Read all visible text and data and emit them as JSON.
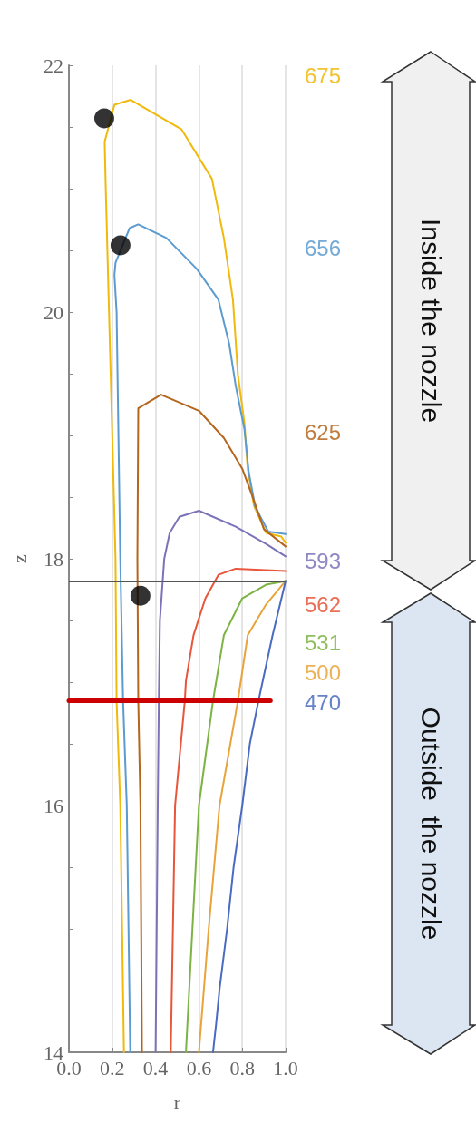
{
  "chart_data": {
    "type": "line",
    "xlabel": "r",
    "ylabel": "z",
    "xlim": [
      0,
      1
    ],
    "ylim": [
      14,
      22
    ],
    "xticks": [
      {
        "value": 0,
        "label": "0.0"
      },
      0.2,
      0.4,
      0.6,
      0.8,
      {
        "value": 1,
        "label": "1.0"
      }
    ],
    "yticks": [
      14,
      {
        "value": 14.5,
        "label": null
      },
      {
        "value": 15,
        "label": null
      },
      {
        "value": 15.5,
        "label": null
      },
      16,
      {
        "value": 16.5,
        "label": null
      },
      {
        "value": 17,
        "label": null
      },
      {
        "value": 17.5,
        "label": null
      },
      18,
      {
        "value": 18.5,
        "label": null
      },
      {
        "value": 19,
        "label": null
      },
      {
        "value": 19.5,
        "label": null
      },
      20,
      {
        "value": 20.5,
        "label": null
      },
      {
        "value": 21,
        "label": null
      },
      {
        "value": 21.5,
        "label": null
      },
      22
    ],
    "grid": "x",
    "legend": false,
    "marker": "none",
    "line_style": "solid",
    "series": [
      {
        "name": "675",
        "color": "#f0b90b",
        "x": [
          0.254,
          0.237,
          0.22,
          0.215,
          0.185,
          0.17,
          0.165,
          0.21,
          0.285,
          0.52,
          0.66,
          0.715,
          0.757,
          0.78,
          0.81,
          0.825,
          0.854,
          0.91,
          0.98,
          1.0
        ],
        "values": [
          14,
          16,
          16.85,
          18,
          20,
          21,
          21.38,
          21.68,
          21.72,
          21.48,
          21.08,
          20.6,
          20.1,
          19.49,
          19.1,
          18.73,
          18.43,
          18.21,
          18.18,
          18.13
        ]
      },
      {
        "name": "656",
        "color": "#5b9bd0",
        "x": [
          0.283,
          0.267,
          0.25,
          0.237,
          0.22,
          0.21,
          0.215,
          0.28,
          0.32,
          0.45,
          0.59,
          0.69,
          0.74,
          0.77,
          0.81,
          0.83,
          0.86,
          0.92,
          1.0
        ],
        "values": [
          14,
          16,
          16.85,
          18,
          20,
          20.3,
          20.4,
          20.68,
          20.71,
          20.6,
          20.35,
          20.1,
          19.74,
          19.4,
          19.05,
          18.7,
          18.42,
          18.22,
          18.2
        ]
      },
      {
        "name": "625",
        "color": "#b5651d",
        "x": [
          0.337,
          0.33,
          0.32,
          0.316,
          0.32,
          0.425,
          0.6,
          0.715,
          0.8,
          0.84,
          0.9,
          1.0
        ],
        "values": [
          14,
          16,
          16.85,
          18,
          19.22,
          19.33,
          19.2,
          18.98,
          18.73,
          18.54,
          18.24,
          18.1
        ]
      },
      {
        "name": "593",
        "color": "#7b73b8",
        "x": [
          0.4,
          0.41,
          0.415,
          0.42,
          0.44,
          0.465,
          0.51,
          0.6,
          0.77,
          0.91,
          1.0
        ],
        "values": [
          14,
          16,
          16.85,
          17.5,
          18,
          18.21,
          18.34,
          18.39,
          18.26,
          18.12,
          18.02
        ]
      },
      {
        "name": "562",
        "color": "#e8553a",
        "x": [
          0.47,
          0.49,
          0.535,
          0.54,
          0.575,
          0.63,
          0.69,
          0.77,
          1.0
        ],
        "values": [
          14,
          16,
          16.85,
          17.01,
          17.38,
          17.68,
          17.87,
          17.92,
          17.9
        ]
      },
      {
        "name": "531",
        "color": "#7cb342",
        "x": [
          0.54,
          0.57,
          0.6,
          0.665,
          0.715,
          0.8,
          0.91,
          1.0
        ],
        "values": [
          14,
          15,
          16,
          16.85,
          17.38,
          17.68,
          17.79,
          17.82
        ]
      },
      {
        "name": "500",
        "color": "#e8a43a",
        "x": [
          0.6,
          0.645,
          0.695,
          0.78,
          0.825,
          0.91,
          1.0
        ],
        "values": [
          14,
          15,
          16,
          16.85,
          17.38,
          17.63,
          17.82
        ]
      },
      {
        "name": "470",
        "color": "#4a6bbf",
        "x": [
          0.665,
          0.68,
          0.695,
          0.73,
          0.76,
          0.8,
          0.835,
          0.875,
          0.94,
          1.0
        ],
        "values": [
          14,
          14.24,
          14.51,
          15,
          15.5,
          16,
          16.5,
          16.85,
          17.38,
          17.82
        ]
      },
      {
        "type": "line",
        "color": "#cc0000",
        "x": [
          0,
          0.93
        ],
        "values": [
          16.85,
          16.85
        ]
      },
      {
        "type": "scatter",
        "marker": "circle",
        "color": "#000000",
        "x": [
          0.163,
          0.238,
          0.33
        ],
        "values": [
          21.57,
          20.54,
          17.7
        ]
      }
    ],
    "ref_lines": [
      {
        "axis": "y",
        "value": 17.82,
        "color": "#555555"
      }
    ],
    "annotations": [
      "Inside the nozzle",
      "Outside  the nozzle"
    ]
  }
}
